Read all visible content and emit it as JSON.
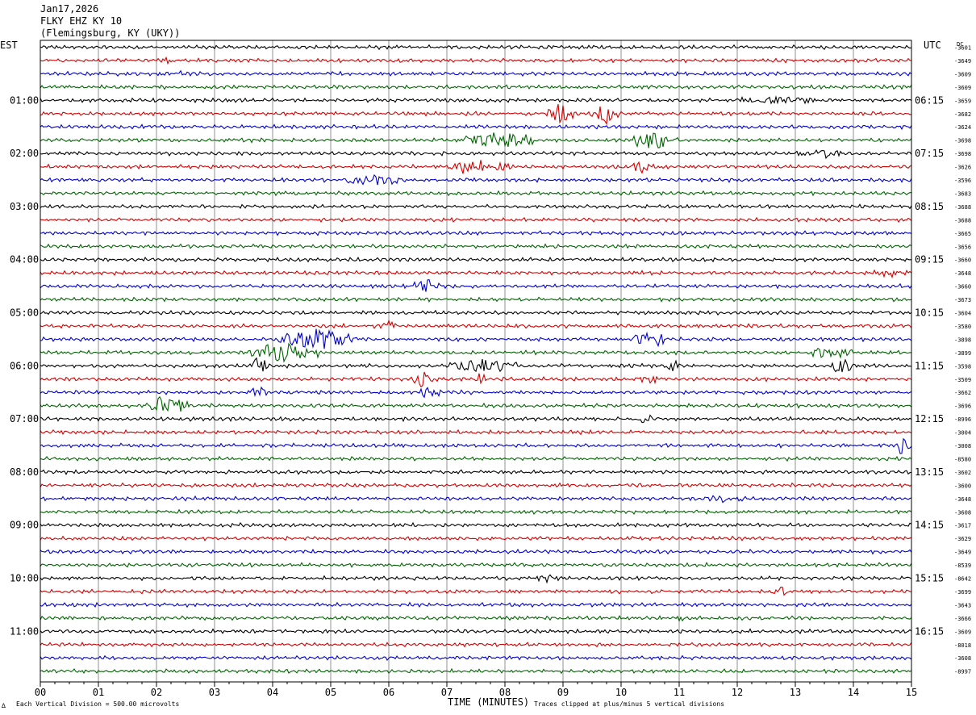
{
  "header": {
    "date": "Jan17,2026",
    "station": "FLKY EHZ KY 10",
    "location": "(Flemingsburg, KY (UKY))"
  },
  "chart_data": {
    "type": "line",
    "title": "",
    "left_timezone": "EST",
    "right_timezone": "UTC",
    "dc_label": "DC",
    "xlabel": "TIME (MINUTES)",
    "xlim": [
      0,
      15
    ],
    "x_ticks": [
      "00",
      "01",
      "02",
      "03",
      "04",
      "05",
      "06",
      "07",
      "08",
      "09",
      "10",
      "11",
      "12",
      "13",
      "14",
      "15"
    ],
    "left_hour_labels": [
      "01:00",
      "02:00",
      "03:00",
      "04:00",
      "05:00",
      "06:00",
      "07:00",
      "08:00",
      "09:00",
      "10:00",
      "11:00"
    ],
    "right_hour_labels": [
      "06:15",
      "07:15",
      "08:15",
      "09:15",
      "10:15",
      "11:15",
      "12:15",
      "13:15",
      "14:15",
      "15:15",
      "16:15"
    ],
    "first_labeled_trace": 4,
    "traces_per_hour": 4,
    "trace_minutes": 15,
    "trace_colors": [
      "#000000",
      "#d40000",
      "#0000d0",
      "#006400"
    ],
    "dc_offsets": [
      "-3601",
      "-3649",
      "-3609",
      "-3609",
      "-3659",
      "-3682",
      "-3624",
      "-3698",
      "-3698",
      "-3626",
      "-3596",
      "-3683",
      "-3688",
      "-3688",
      "-3665",
      "-3656",
      "-3660",
      "-3648",
      "-3660",
      "-3673",
      "-3604",
      "-3580",
      "-3898",
      "-3899",
      "-3598",
      "-3509",
      "-3662",
      "-3696",
      "-8996",
      "-3004",
      "-3008",
      "-8580",
      "-3602",
      "-3600",
      "-3648",
      "-3608",
      "-3617",
      "-3629",
      "-3649",
      "-8539",
      "-8642",
      "-3699",
      "-3643",
      "-3666",
      "-3609",
      "-8018",
      "-3608",
      "-8997"
    ],
    "events": [
      {
        "trace": 1,
        "start_min": 2.0,
        "end_min": 2.4,
        "amp": 0.22
      },
      {
        "trace": 2,
        "start_min": 2.0,
        "end_min": 2.7,
        "amp": 0.22
      },
      {
        "trace": 4,
        "start_min": 12.0,
        "end_min": 13.3,
        "amp": 0.3
      },
      {
        "trace": 5,
        "start_min": 8.7,
        "end_min": 9.2,
        "amp": 1.0
      },
      {
        "trace": 5,
        "start_min": 9.5,
        "end_min": 10.0,
        "amp": 0.9
      },
      {
        "trace": 7,
        "start_min": 7.3,
        "end_min": 8.5,
        "amp": 0.7
      },
      {
        "trace": 7,
        "start_min": 10.2,
        "end_min": 11.0,
        "amp": 0.8
      },
      {
        "trace": 8,
        "start_min": 13.0,
        "end_min": 14.0,
        "amp": 0.3
      },
      {
        "trace": 9,
        "start_min": 7.0,
        "end_min": 8.1,
        "amp": 0.6
      },
      {
        "trace": 9,
        "start_min": 10.2,
        "end_min": 10.6,
        "amp": 0.6
      },
      {
        "trace": 10,
        "start_min": 5.2,
        "end_min": 6.2,
        "amp": 0.45
      },
      {
        "trace": 17,
        "start_min": 14.3,
        "end_min": 15.0,
        "amp": 0.3
      },
      {
        "trace": 18,
        "start_min": 6.4,
        "end_min": 6.9,
        "amp": 0.55
      },
      {
        "trace": 21,
        "start_min": 5.7,
        "end_min": 6.2,
        "amp": 0.4
      },
      {
        "trace": 22,
        "start_min": 4.1,
        "end_min": 5.4,
        "amp": 1.0
      },
      {
        "trace": 22,
        "start_min": 10.2,
        "end_min": 10.8,
        "amp": 0.7
      },
      {
        "trace": 23,
        "start_min": 3.6,
        "end_min": 4.8,
        "amp": 0.8
      },
      {
        "trace": 23,
        "start_min": 13.2,
        "end_min": 14.0,
        "amp": 0.5
      },
      {
        "trace": 24,
        "start_min": 3.6,
        "end_min": 3.9,
        "amp": 0.8
      },
      {
        "trace": 24,
        "start_min": 7.0,
        "end_min": 8.2,
        "amp": 0.6
      },
      {
        "trace": 24,
        "start_min": 10.8,
        "end_min": 11.0,
        "amp": 0.7
      },
      {
        "trace": 24,
        "start_min": 13.6,
        "end_min": 14.0,
        "amp": 0.7
      },
      {
        "trace": 25,
        "start_min": 6.4,
        "end_min": 6.9,
        "amp": 0.8
      },
      {
        "trace": 25,
        "start_min": 7.5,
        "end_min": 7.7,
        "amp": 0.6
      },
      {
        "trace": 25,
        "start_min": 10.3,
        "end_min": 10.7,
        "amp": 0.5
      },
      {
        "trace": 26,
        "start_min": 3.6,
        "end_min": 3.9,
        "amp": 0.6
      },
      {
        "trace": 26,
        "start_min": 6.5,
        "end_min": 6.9,
        "amp": 0.5
      },
      {
        "trace": 27,
        "start_min": 1.8,
        "end_min": 2.6,
        "amp": 0.8
      },
      {
        "trace": 28,
        "start_min": 10.0,
        "end_min": 10.8,
        "amp": 0.25
      },
      {
        "trace": 30,
        "start_min": 14.7,
        "end_min": 15.0,
        "amp": 0.8
      },
      {
        "trace": 34,
        "start_min": 11.5,
        "end_min": 12.2,
        "amp": 0.25
      },
      {
        "trace": 40,
        "start_min": 8.5,
        "end_min": 9.0,
        "amp": 0.25
      },
      {
        "trace": 41,
        "start_min": 12.6,
        "end_min": 12.9,
        "amp": 0.4
      },
      {
        "trace": 43,
        "start_min": 10.9,
        "end_min": 11.1,
        "amp": 0.4
      }
    ]
  },
  "footer": {
    "division_note": "Each Vertical Division =  500.00 microvolts",
    "clip_note": "Traces clipped at plus/minus 5 vertical divisions",
    "corner_mark": "∆"
  }
}
